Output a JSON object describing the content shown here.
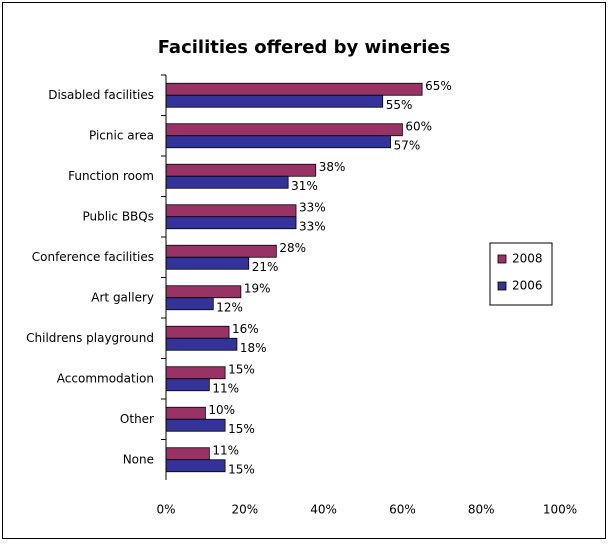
{
  "chart_data": {
    "type": "bar",
    "orientation": "horizontal",
    "title": "Facilities offered by wineries",
    "categories": [
      "Disabled facilities",
      "Picnic area",
      "Function room",
      "Public BBQs",
      "Conference facilities",
      "Art gallery",
      "Childrens playground",
      "Accommodation",
      "Other",
      "None"
    ],
    "series": [
      {
        "name": "2008",
        "color": "#993366",
        "values": [
          65,
          60,
          38,
          33,
          28,
          19,
          16,
          15,
          10,
          11
        ],
        "value_labels": [
          "65%",
          "60%",
          "38%",
          "33%",
          "28%",
          "19%",
          "16%",
          "15%",
          "10%",
          "11%"
        ]
      },
      {
        "name": "2006",
        "color": "#333399",
        "values": [
          55,
          57,
          31,
          33,
          21,
          12,
          18,
          11,
          15,
          15
        ],
        "value_labels": [
          "55%",
          "57%",
          "31%",
          "33%",
          "21%",
          "12%",
          "18%",
          "11%",
          "15%",
          "15%"
        ]
      }
    ],
    "xlim": [
      0,
      100
    ],
    "xticks": [
      {
        "value": 0,
        "label": "0%"
      },
      {
        "value": 20,
        "label": "20%"
      },
      {
        "value": 40,
        "label": "40%"
      },
      {
        "value": 60,
        "label": "60%"
      },
      {
        "value": 80,
        "label": "80%"
      },
      {
        "value": 100,
        "label": "100%"
      }
    ],
    "legend": "right"
  }
}
